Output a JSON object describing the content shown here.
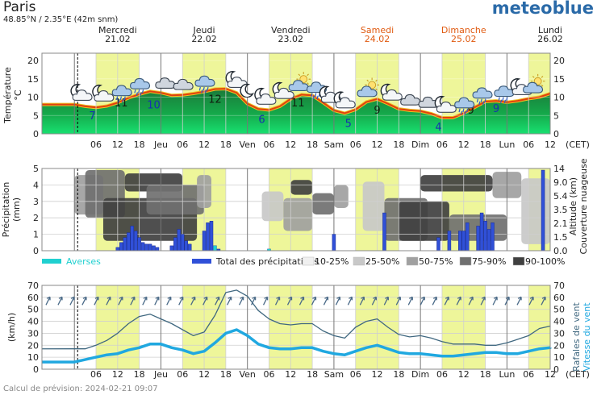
{
  "header": {
    "city": "Paris",
    "coords": "48.85°N / 2.35°E (42m snm)",
    "brand": "meteoblue",
    "footer": "Calcul de prévision: 2024-02-21 09:07"
  },
  "colors": {
    "weekend_label": "#e05a10",
    "day_band": "#eef69a",
    "temp_line": "#e04010",
    "precip_bar": "#3050d8",
    "showers": "#20d0d0",
    "gust_line": "#406880",
    "wind_line": "#20a8e0",
    "brand": "#2a6aa8"
  },
  "days": [
    {
      "name": "Mercredi",
      "date": "21.02",
      "weekend": false
    },
    {
      "name": "Jeudi",
      "date": "22.02",
      "weekend": false
    },
    {
      "name": "Vendredi",
      "date": "23.02",
      "weekend": false
    },
    {
      "name": "Samedi",
      "date": "24.02",
      "weekend": true
    },
    {
      "name": "Dimanche",
      "date": "25.02",
      "weekend": true
    },
    {
      "name": "Lundi",
      "date": "26.02",
      "weekend": false
    }
  ],
  "x_axis": {
    "labels": [
      "06",
      "12",
      "18",
      "Jeu",
      "06",
      "12",
      "18",
      "Ven",
      "06",
      "12",
      "18",
      "Sam",
      "06",
      "12",
      "18",
      "Dim",
      "06",
      "12",
      "18",
      "Lun",
      "06",
      "12"
    ],
    "unit_label": "(CET)"
  },
  "chart_data": [
    {
      "type": "area",
      "title": "Température",
      "ylabel": "Température °C",
      "ylim": [
        0,
        22
      ],
      "y_ticks": [
        0,
        5,
        10,
        15,
        20
      ],
      "x_hours": [
        0,
        3,
        6,
        9,
        12,
        15,
        18,
        21,
        24,
        27,
        30,
        33,
        36,
        39,
        42,
        45,
        48,
        51,
        54,
        57,
        60,
        63,
        66,
        69,
        72,
        75,
        78,
        81,
        84,
        87,
        90,
        93,
        96,
        99,
        102,
        105,
        108,
        111,
        114,
        117,
        120,
        123,
        126,
        129,
        132
      ],
      "temperature": [
        8,
        7.5,
        7.2,
        7.6,
        8.5,
        9.8,
        10.8,
        11.6,
        11.2,
        10.5,
        10.6,
        11,
        11.5,
        12.2,
        12.3,
        11.2,
        8.2,
        6.8,
        6.5,
        7.5,
        9.5,
        10.7,
        10.5,
        8.5,
        6.4,
        5.6,
        6.6,
        8.7,
        9.5,
        8.2,
        6.8,
        6.4,
        6.2,
        5.5,
        4.4,
        4.4,
        5.6,
        7.2,
        8.8,
        9.0,
        8.6,
        9.0,
        9.6,
        10.0,
        11
      ],
      "min_max_labels": [
        {
          "hour": 5,
          "value": "7",
          "kind": "min"
        },
        {
          "hour": 13,
          "value": "11",
          "kind": "max"
        },
        {
          "hour": 22,
          "value": "10",
          "kind": "min"
        },
        {
          "hour": 39,
          "value": "12",
          "kind": "max"
        },
        {
          "hour": 52,
          "value": "6",
          "kind": "min"
        },
        {
          "hour": 62,
          "value": "11",
          "kind": "max"
        },
        {
          "hour": 76,
          "value": "5",
          "kind": "min"
        },
        {
          "hour": 84,
          "value": "9",
          "kind": "max"
        },
        {
          "hour": 101,
          "value": "4",
          "kind": "min"
        },
        {
          "hour": 110,
          "value": "9",
          "kind": "max"
        },
        {
          "hour": 117,
          "value": "9",
          "kind": "min"
        }
      ],
      "icons": [
        {
          "hour": 2,
          "type": "moon-cloud"
        },
        {
          "hour": 8,
          "type": "moon-cloud"
        },
        {
          "hour": 13,
          "type": "rain"
        },
        {
          "hour": 18,
          "type": "rain"
        },
        {
          "hour": 25,
          "type": "cloud"
        },
        {
          "hour": 30,
          "type": "cloud"
        },
        {
          "hour": 36,
          "type": "rain"
        },
        {
          "hour": 45,
          "type": "moon-cloud"
        },
        {
          "hour": 49,
          "type": "moon"
        },
        {
          "hour": 53,
          "type": "moon-cloud"
        },
        {
          "hour": 58,
          "type": "moon-cloud"
        },
        {
          "hour": 62,
          "type": "sun-cloud"
        },
        {
          "hour": 67,
          "type": "rain"
        },
        {
          "hour": 71,
          "type": "moon-cloud"
        },
        {
          "hour": 75,
          "type": "moon-cloud"
        },
        {
          "hour": 81,
          "type": "sun-cloud"
        },
        {
          "hour": 88,
          "type": "moon-cloud"
        },
        {
          "hour": 93,
          "type": "cloud"
        },
        {
          "hour": 98,
          "type": "cloud"
        },
        {
          "hour": 103,
          "type": "moon-cloud"
        },
        {
          "hour": 108,
          "type": "rain"
        },
        {
          "hour": 113,
          "type": "rain"
        },
        {
          "hour": 119,
          "type": "rain"
        },
        {
          "hour": 124,
          "type": "moon-cloud"
        },
        {
          "hour": 127,
          "type": "sun-cloud"
        }
      ]
    },
    {
      "type": "bar",
      "title": "Précipitation",
      "ylabel": "Précipitation (mm)",
      "ylim": [
        0,
        5
      ],
      "y_ticks": [
        0,
        1,
        2,
        3,
        4,
        5
      ],
      "right_axis_label": "Altitude (km)",
      "right_axis_label2": "Couverture nuageuse",
      "right_ticks": [
        "0.0",
        "1.5",
        "2.1",
        "3.5",
        "5.4",
        "9.0",
        "14"
      ],
      "precip_bars": [
        {
          "hour": 12,
          "value": 0.2
        },
        {
          "hour": 13,
          "value": 0.5
        },
        {
          "hour": 14,
          "value": 0.8
        },
        {
          "hour": 15,
          "value": 1.1
        },
        {
          "hour": 16,
          "value": 1.5
        },
        {
          "hour": 17,
          "value": 1.2
        },
        {
          "hour": 18,
          "value": 0.8
        },
        {
          "hour": 19,
          "value": 0.5
        },
        {
          "hour": 20,
          "value": 0.4
        },
        {
          "hour": 21,
          "value": 0.4
        },
        {
          "hour": 22,
          "value": 0.3
        },
        {
          "hour": 23,
          "value": 0.2
        },
        {
          "hour": 27,
          "value": 0.3
        },
        {
          "hour": 28,
          "value": 0.8
        },
        {
          "hour": 29,
          "value": 1.3
        },
        {
          "hour": 30,
          "value": 1.0
        },
        {
          "hour": 31,
          "value": 0.6
        },
        {
          "hour": 32,
          "value": 0.4
        },
        {
          "hour": 36,
          "value": 1.2
        },
        {
          "hour": 37,
          "value": 1.7
        },
        {
          "hour": 38,
          "value": 1.8
        },
        {
          "hour": 39,
          "value": 0.3
        },
        {
          "hour": 40,
          "value": 0.1
        },
        {
          "hour": 54,
          "value": 0.1
        },
        {
          "hour": 72,
          "value": 1.0
        },
        {
          "hour": 86,
          "value": 2.3
        },
        {
          "hour": 101,
          "value": 0.8
        },
        {
          "hour": 104,
          "value": 1.2
        },
        {
          "hour": 107,
          "value": 1.2
        },
        {
          "hour": 108,
          "value": 1.2
        },
        {
          "hour": 109,
          "value": 1.7
        },
        {
          "hour": 112,
          "value": 1.5
        },
        {
          "hour": 113,
          "value": 2.3
        },
        {
          "hour": 114,
          "value": 1.8
        },
        {
          "hour": 115,
          "value": 1.3
        },
        {
          "hour": 116,
          "value": 1.7
        },
        {
          "hour": 130,
          "value": 4.9
        }
      ],
      "shower_bars": [
        {
          "hour": 39,
          "value": 0.3
        },
        {
          "hour": 54,
          "value": 0.1
        }
      ],
      "cloud_blocks": [
        {
          "h0": 0,
          "h1": 8,
          "l0": 2.2,
          "l1": 4.6,
          "level": 2
        },
        {
          "h0": 3,
          "h1": 14,
          "l0": 2.0,
          "l1": 4.9,
          "level": 3
        },
        {
          "h0": 8,
          "h1": 34,
          "l0": 0.6,
          "l1": 3.2,
          "level": 4
        },
        {
          "h0": 14,
          "h1": 30,
          "l0": 3.6,
          "l1": 4.7,
          "level": 4
        },
        {
          "h0": 20,
          "h1": 36,
          "l0": 2.2,
          "l1": 4.0,
          "level": 3
        },
        {
          "h0": 34,
          "h1": 38,
          "l0": 2.6,
          "l1": 4.6,
          "level": 2
        },
        {
          "h0": 52,
          "h1": 58,
          "l0": 1.8,
          "l1": 3.6,
          "level": 1
        },
        {
          "h0": 58,
          "h1": 66,
          "l0": 1.2,
          "l1": 3.2,
          "level": 2
        },
        {
          "h0": 60,
          "h1": 66,
          "l0": 3.4,
          "l1": 4.3,
          "level": 4
        },
        {
          "h0": 66,
          "h1": 72,
          "l0": 2.2,
          "l1": 3.5,
          "level": 3
        },
        {
          "h0": 72,
          "h1": 76,
          "l0": 2.6,
          "l1": 4.0,
          "level": 2
        },
        {
          "h0": 80,
          "h1": 86,
          "l0": 1.2,
          "l1": 4.2,
          "level": 1
        },
        {
          "h0": 86,
          "h1": 98,
          "l0": 0.6,
          "l1": 3.2,
          "level": 3
        },
        {
          "h0": 90,
          "h1": 104,
          "l0": 0.6,
          "l1": 3.0,
          "level": 4
        },
        {
          "h0": 96,
          "h1": 116,
          "l0": 3.6,
          "l1": 4.6,
          "level": 4
        },
        {
          "h0": 104,
          "h1": 120,
          "l0": 0.6,
          "l1": 2.2,
          "level": 3
        },
        {
          "h0": 116,
          "h1": 124,
          "l0": 3.2,
          "l1": 4.8,
          "level": 2
        },
        {
          "h0": 124,
          "h1": 132,
          "l0": 0.4,
          "l1": 4.4,
          "level": 1
        }
      ],
      "legend": {
        "showers": "Averses",
        "total": "Total des précipitations",
        "cloud_levels": [
          "10-25%",
          "25-50%",
          "50-75%",
          "75-90%",
          "90-100%"
        ],
        "cloud_colors": [
          "#f0f0f0",
          "#c8c8c8",
          "#a0a0a0",
          "#707070",
          "#404040"
        ]
      }
    },
    {
      "type": "line",
      "title": "Vent",
      "ylabel": "(km/h)",
      "ylim": [
        0,
        70
      ],
      "y_ticks": [
        0,
        10,
        20,
        30,
        40,
        50,
        60,
        70
      ],
      "right_label_gusts": "Rafales de vent",
      "right_label_speed": "Vitesse du vent",
      "series": [
        {
          "name": "Rafales de vent",
          "x_hours": [
            0,
            3,
            6,
            9,
            12,
            15,
            18,
            21,
            24,
            27,
            30,
            33,
            36,
            39,
            42,
            45,
            48,
            51,
            54,
            57,
            60,
            63,
            66,
            69,
            72,
            75,
            78,
            81,
            84,
            87,
            90,
            93,
            96,
            99,
            102,
            105,
            108,
            111,
            114,
            117,
            120,
            123,
            126,
            129,
            132
          ],
          "values": [
            17,
            17,
            20,
            24,
            30,
            38,
            44,
            46,
            42,
            38,
            33,
            28,
            31,
            45,
            64,
            66,
            61,
            49,
            42,
            38,
            37,
            38,
            38,
            32,
            28,
            26,
            35,
            40,
            42,
            35,
            29,
            27,
            28,
            26,
            23,
            21,
            21,
            21,
            20,
            20,
            22,
            25,
            28,
            34,
            36
          ]
        },
        {
          "name": "Vitesse du vent",
          "x_hours": [
            0,
            3,
            6,
            9,
            12,
            15,
            18,
            21,
            24,
            27,
            30,
            33,
            36,
            39,
            42,
            45,
            48,
            51,
            54,
            57,
            60,
            63,
            66,
            69,
            72,
            75,
            78,
            81,
            84,
            87,
            90,
            93,
            96,
            99,
            102,
            105,
            108,
            111,
            114,
            117,
            120,
            123,
            126,
            129,
            132
          ],
          "values": [
            6,
            8,
            10,
            12,
            13,
            16,
            18,
            21,
            21,
            18,
            16,
            13,
            15,
            22,
            30,
            33,
            28,
            21,
            18,
            17,
            17,
            18,
            18,
            15,
            13,
            12,
            15,
            18,
            20,
            17,
            14,
            13,
            13,
            12,
            11,
            11,
            12,
            13,
            14,
            14,
            13,
            13,
            15,
            17,
            18
          ]
        }
      ],
      "arrow_count": 42
    }
  ]
}
